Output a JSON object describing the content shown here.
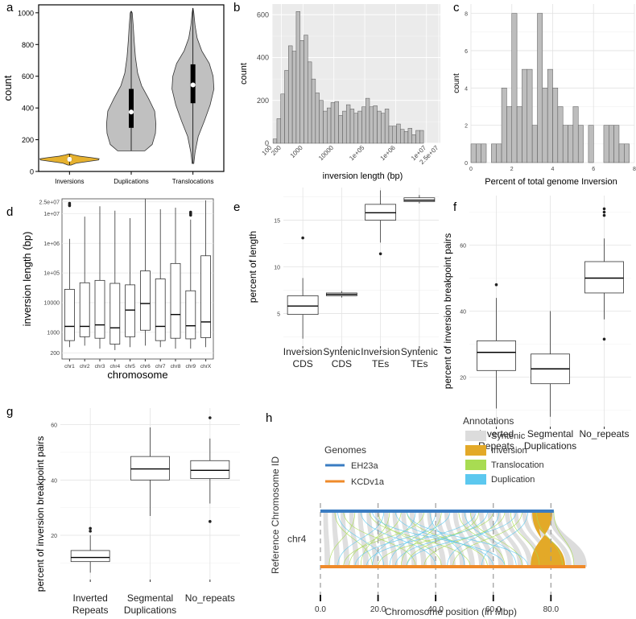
{
  "chart_data": [
    {
      "panel": "a",
      "type": "violin",
      "ylabel": "count",
      "ylim": [
        0,
        1050
      ],
      "yticks": [
        0,
        200,
        400,
        600,
        800,
        1000
      ],
      "categories": [
        "Inversions",
        "Duplications",
        "Translocations"
      ],
      "violins": [
        {
          "name": "Inversions",
          "fill": "#e6b12e",
          "min": 40,
          "max": 110,
          "q1": 70,
          "median": 77,
          "q3": 83,
          "profile": [
            [
              40,
              0.05
            ],
            [
              52,
              0.22
            ],
            [
              62,
              0.6
            ],
            [
              72,
              0.98
            ],
            [
              80,
              1.0
            ],
            [
              88,
              0.7
            ],
            [
              96,
              0.35
            ],
            [
              104,
              0.15
            ],
            [
              110,
              0.03
            ]
          ],
          "halfwidth": 0.48
        },
        {
          "name": "Duplications",
          "fill": "#c0c0c0",
          "min": 130,
          "max": 1010,
          "q1": 275,
          "median": 375,
          "q3": 520,
          "profile": [
            [
              130,
              0.55
            ],
            [
              170,
              0.85
            ],
            [
              240,
              0.98
            ],
            [
              300,
              1.0
            ],
            [
              380,
              0.95
            ],
            [
              460,
              0.7
            ],
            [
              540,
              0.42
            ],
            [
              620,
              0.26
            ],
            [
              720,
              0.17
            ],
            [
              820,
              0.12
            ],
            [
              920,
              0.08
            ],
            [
              1000,
              0.04
            ],
            [
              1010,
              0.0
            ]
          ],
          "halfwidth": 0.4
        },
        {
          "name": "Translocations",
          "fill": "#c0c0c0",
          "min": 50,
          "max": 1030,
          "q1": 430,
          "median": 545,
          "q3": 675,
          "profile": [
            [
              50,
              0.04
            ],
            [
              120,
              0.1
            ],
            [
              220,
              0.25
            ],
            [
              320,
              0.55
            ],
            [
              420,
              0.82
            ],
            [
              520,
              1.0
            ],
            [
              600,
              0.96
            ],
            [
              680,
              0.78
            ],
            [
              760,
              0.42
            ],
            [
              840,
              0.2
            ],
            [
              920,
              0.1
            ],
            [
              1000,
              0.04
            ],
            [
              1030,
              0.0
            ]
          ],
          "halfwidth": 0.34
        }
      ]
    },
    {
      "panel": "b",
      "type": "histogram",
      "xlabel": "inversion length (bp)",
      "ylabel": "count",
      "xscale": "log10",
      "xlim_log10": [
        2,
        7.45
      ],
      "ylim": [
        0,
        650
      ],
      "xtick_labels": [
        "100",
        "200",
        "1000",
        "10000",
        "1e+05",
        "1e+06",
        "1e+07",
        "2.5e+07"
      ],
      "ytick_labels": [
        "0",
        "200",
        "400",
        "600"
      ],
      "bin_width_log10": 0.125,
      "counts": [
        20,
        115,
        230,
        340,
        455,
        430,
        615,
        480,
        505,
        380,
        300,
        235,
        200,
        150,
        165,
        190,
        195,
        130,
        150,
        180,
        160,
        140,
        150,
        170,
        210,
        170,
        175,
        150,
        140,
        160,
        80,
        80,
        90,
        65,
        55,
        70,
        40,
        60,
        60
      ]
    },
    {
      "panel": "c",
      "type": "histogram",
      "xlabel": "Percent of total genome Inversion",
      "ylabel": "count",
      "xlim": [
        0,
        8
      ],
      "ylim": [
        0,
        8.5
      ],
      "xtick_labels": [
        "0",
        "2",
        "4",
        "6",
        "8"
      ],
      "ytick_labels": [
        "0",
        "2",
        "4",
        "6",
        "8"
      ],
      "bin_start": 0.0,
      "bin_width": 0.25,
      "counts": [
        1,
        1,
        1,
        0,
        1,
        1,
        4,
        3,
        8,
        3,
        5,
        5,
        2,
        8,
        4,
        5,
        4,
        3,
        2,
        2,
        3,
        2,
        0,
        2,
        0,
        0,
        2,
        2,
        2,
        1,
        1
      ]
    },
    {
      "panel": "d",
      "type": "boxplot",
      "xlabel": "chromosome",
      "ylabel": "inversion length (bp)",
      "yscale": "log10",
      "ylim_log10": [
        2.1,
        7.5
      ],
      "ytick_labels": [
        "200",
        "1000",
        "10000",
        "1e+05",
        "1e+06",
        "1e+07",
        "2.5e+07"
      ],
      "categories": [
        "chr1",
        "chr2",
        "chr3",
        "chr4",
        "chr5",
        "chr6",
        "chr7",
        "chr8",
        "chr9",
        "chrX"
      ],
      "boxes": [
        {
          "name": "chr1",
          "low_log10": 2.5,
          "q1_log10": 2.72,
          "median_log10": 3.2,
          "q3_log10": 4.45,
          "high_log10": 6.15,
          "outliers_log10": [
            7.35,
            7.3,
            7.27
          ]
        },
        {
          "name": "chr2",
          "low_log10": 2.55,
          "q1_log10": 2.85,
          "median_log10": 3.2,
          "q3_log10": 4.67,
          "high_log10": 6.9,
          "outliers_log10": []
        },
        {
          "name": "chr3",
          "low_log10": 2.45,
          "q1_log10": 2.8,
          "median_log10": 3.25,
          "q3_log10": 4.75,
          "high_log10": 7.25,
          "outliers_log10": []
        },
        {
          "name": "chr4",
          "low_log10": 2.4,
          "q1_log10": 2.6,
          "median_log10": 3.15,
          "q3_log10": 4.65,
          "high_log10": 7.1,
          "outliers_log10": []
        },
        {
          "name": "chr5",
          "low_log10": 2.5,
          "q1_log10": 2.85,
          "median_log10": 3.75,
          "q3_log10": 4.6,
          "high_log10": 6.85,
          "outliers_log10": []
        },
        {
          "name": "chr6",
          "low_log10": 2.55,
          "q1_log10": 3.07,
          "median_log10": 3.97,
          "q3_log10": 5.07,
          "high_log10": 7.5,
          "outliers_log10": []
        },
        {
          "name": "chr7",
          "low_log10": 2.5,
          "q1_log10": 2.72,
          "median_log10": 3.2,
          "q3_log10": 4.8,
          "high_log10": 7.15,
          "outliers_log10": []
        },
        {
          "name": "chr8",
          "low_log10": 2.45,
          "q1_log10": 2.8,
          "median_log10": 3.6,
          "q3_log10": 5.32,
          "high_log10": 7.2,
          "outliers_log10": []
        },
        {
          "name": "chr9",
          "low_log10": 2.45,
          "q1_log10": 2.78,
          "median_log10": 3.22,
          "q3_log10": 4.4,
          "high_log10": 6.8,
          "outliers_log10": [
            7.05,
            7.0,
            6.95
          ]
        },
        {
          "name": "chrX",
          "low_log10": 2.5,
          "q1_log10": 2.82,
          "median_log10": 3.35,
          "q3_log10": 5.58,
          "high_log10": 7.45,
          "outliers_log10": []
        }
      ]
    },
    {
      "panel": "e",
      "type": "boxplot",
      "ylabel": "percent of length",
      "ylim": [
        1.5,
        18.5
      ],
      "ytick_labels": [
        "5",
        "10",
        "15"
      ],
      "categories": [
        "Inversion CDS",
        "Syntenic CDS",
        "Inversion TEs",
        "Syntenic TEs"
      ],
      "category_lines": [
        [
          "Inversion",
          "CDS"
        ],
        [
          "Syntenic",
          "CDS"
        ],
        [
          "Inversion",
          "TEs"
        ],
        [
          "Syntenic",
          "TEs"
        ]
      ],
      "boxes": [
        {
          "name": "Inversion CDS",
          "low": 2.3,
          "q1": 4.9,
          "median": 5.8,
          "q3": 6.9,
          "high": 8.8,
          "outliers": [
            13.1
          ]
        },
        {
          "name": "Syntenic CDS",
          "low": 6.7,
          "q1": 6.9,
          "median": 7.05,
          "q3": 7.2,
          "high": 7.4,
          "outliers": []
        },
        {
          "name": "Inversion TEs",
          "low": 12.6,
          "q1": 15.0,
          "median": 15.8,
          "q3": 16.7,
          "high": 18.2,
          "outliers": [
            11.4
          ]
        },
        {
          "name": "Syntenic TEs",
          "low": 16.8,
          "q1": 17.0,
          "median": 17.15,
          "q3": 17.4,
          "high": 17.7,
          "outliers": []
        }
      ]
    },
    {
      "panel": "f",
      "type": "boxplot",
      "ylabel": "percent of inversion breakpoint pairs",
      "ylim": [
        5,
        75
      ],
      "ytick_labels": [
        "20",
        "40",
        "60"
      ],
      "categories": [
        "Inverted Repeats",
        "Segmental Duplications",
        "No_repeats"
      ],
      "category_lines": [
        [
          "Inverted",
          "Repeats"
        ],
        [
          "Segmental",
          "Duplications"
        ],
        [
          "No_repeats"
        ]
      ],
      "boxes": [
        {
          "name": "Inverted Repeats",
          "low": 10.5,
          "q1": 22,
          "median": 27.5,
          "q3": 31,
          "high": 44,
          "outliers": [
            48
          ]
        },
        {
          "name": "Segmental Duplications",
          "low": 8,
          "q1": 18,
          "median": 22.5,
          "q3": 27,
          "high": 40,
          "outliers": []
        },
        {
          "name": "No_repeats",
          "low": 37.5,
          "q1": 45.5,
          "median": 50,
          "q3": 55,
          "high": 62,
          "outliers": [
            31.5,
            69,
            70,
            71
          ]
        }
      ]
    },
    {
      "panel": "g",
      "type": "boxplot",
      "ylabel": "percent of inversion breakpoint pairs",
      "ylim": [
        4,
        66
      ],
      "ytick_labels": [
        "20",
        "40",
        "60"
      ],
      "categories": [
        "Inverted Repeats",
        "Segmental Duplications",
        "No_repeats"
      ],
      "category_lines": [
        [
          "Inverted",
          "Repeats"
        ],
        [
          "Segmental",
          "Duplications"
        ],
        [
          "No_repeats"
        ]
      ],
      "boxes": [
        {
          "name": "Inverted Repeats",
          "low": 6.5,
          "q1": 10.5,
          "median": 12,
          "q3": 14.5,
          "high": 20,
          "outliers": [
            21.5,
            22.5
          ]
        },
        {
          "name": "Segmental Duplications",
          "low": 27,
          "q1": 40,
          "median": 44,
          "q3": 48.5,
          "high": 59,
          "outliers": []
        },
        {
          "name": "No_repeats",
          "low": 31.5,
          "q1": 40.5,
          "median": 43.5,
          "q3": 47,
          "high": 55,
          "outliers": [
            25,
            62.5
          ]
        }
      ]
    },
    {
      "panel": "h",
      "type": "synteny",
      "xlabel": "Chromosome position (in Mbp)",
      "ylabel": "Reference Chromosome ID",
      "chromosome": "chr4",
      "xlim": [
        0,
        95
      ],
      "xtick_labels": [
        "0.0",
        "20.0",
        "40.0",
        "60.0",
        "80.0"
      ],
      "xtick_values": [
        0,
        20,
        40,
        60,
        80
      ],
      "genomes": [
        {
          "name": "EH23a",
          "color": "#3a7cc2",
          "length": 81
        },
        {
          "name": "KCDv1a",
          "color": "#ef8a2a",
          "length": 92
        }
      ],
      "annotations": [
        {
          "name": "Syntenic",
          "color": "#dcdcdc"
        },
        {
          "name": "Inversion",
          "color": "#e3a928"
        },
        {
          "name": "Translocation",
          "color": "#a8dc52"
        },
        {
          "name": "Duplication",
          "color": "#5cc8ef"
        }
      ]
    }
  ],
  "labels": {
    "a": "a",
    "b": "b",
    "c": "c",
    "d": "d",
    "e": "e",
    "f": "f",
    "g": "g",
    "h": "h",
    "genomes_title": "Genomes",
    "annotations_title": "Annotations"
  }
}
